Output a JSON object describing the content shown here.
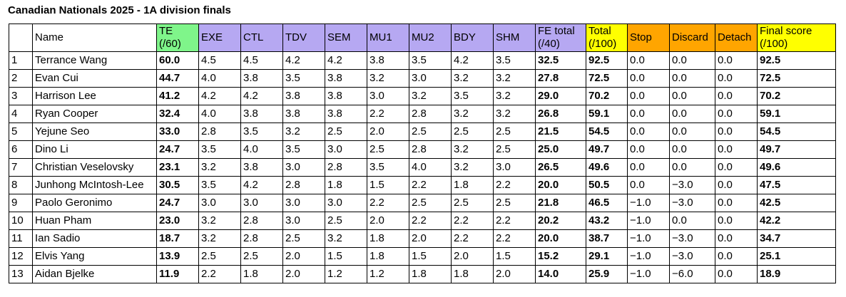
{
  "title": "Canadian Nationals 2025 - 1A division finals",
  "columns": {
    "rank": "",
    "name": "Name",
    "te": [
      "TE",
      "(/60)"
    ],
    "exe": "EXE",
    "ctl": "CTL",
    "tdv": "TDV",
    "sem": "SEM",
    "mu1": "MU1",
    "mu2": "MU2",
    "bdy": "BDY",
    "shm": "SHM",
    "fe_total": [
      "FE total",
      "(/40)"
    ],
    "total": [
      "Total",
      "(/100)"
    ],
    "stop": "Stop",
    "discard": "Discard",
    "detach": "Detach",
    "final": [
      "Final score",
      "(/100)"
    ]
  },
  "colors": {
    "te_header": "#7ff58a",
    "fe_header": "#b6a8f2",
    "total_header": "#ffff00",
    "deduction_header": "#ffa500",
    "final_header": "#ffff00"
  },
  "rows": [
    {
      "rank": "1",
      "name": "Terrance Wang",
      "te": "60.0",
      "exe": "4.5",
      "ctl": "4.5",
      "tdv": "4.2",
      "sem": "4.2",
      "mu1": "3.8",
      "mu2": "3.5",
      "bdy": "4.2",
      "shm": "3.5",
      "fe_total": "32.5",
      "total": "92.5",
      "stop": "0.0",
      "discard": "0.0",
      "detach": "0.0",
      "final": "92.5"
    },
    {
      "rank": "2",
      "name": "Evan Cui",
      "te": "44.7",
      "exe": "4.0",
      "ctl": "3.8",
      "tdv": "3.5",
      "sem": "3.8",
      "mu1": "3.2",
      "mu2": "3.0",
      "bdy": "3.2",
      "shm": "3.2",
      "fe_total": "27.8",
      "total": "72.5",
      "stop": "0.0",
      "discard": "0.0",
      "detach": "0.0",
      "final": "72.5"
    },
    {
      "rank": "3",
      "name": "Harrison Lee",
      "te": "41.2",
      "exe": "4.2",
      "ctl": "4.2",
      "tdv": "3.8",
      "sem": "3.8",
      "mu1": "3.0",
      "mu2": "3.2",
      "bdy": "3.5",
      "shm": "3.2",
      "fe_total": "29.0",
      "total": "70.2",
      "stop": "0.0",
      "discard": "0.0",
      "detach": "0.0",
      "final": "70.2"
    },
    {
      "rank": "4",
      "name": "Ryan Cooper",
      "te": "32.4",
      "exe": "4.0",
      "ctl": "3.8",
      "tdv": "3.8",
      "sem": "3.8",
      "mu1": "2.2",
      "mu2": "2.8",
      "bdy": "3.2",
      "shm": "3.2",
      "fe_total": "26.8",
      "total": "59.1",
      "stop": "0.0",
      "discard": "0.0",
      "detach": "0.0",
      "final": "59.1"
    },
    {
      "rank": "5",
      "name": "Yejune Seo",
      "te": "33.0",
      "exe": "2.8",
      "ctl": "3.5",
      "tdv": "3.2",
      "sem": "2.5",
      "mu1": "2.0",
      "mu2": "2.5",
      "bdy": "2.5",
      "shm": "2.5",
      "fe_total": "21.5",
      "total": "54.5",
      "stop": "0.0",
      "discard": "0.0",
      "detach": "0.0",
      "final": "54.5"
    },
    {
      "rank": "6",
      "name": "Dino Li",
      "te": "24.7",
      "exe": "3.5",
      "ctl": "4.0",
      "tdv": "3.5",
      "sem": "3.0",
      "mu1": "2.5",
      "mu2": "2.8",
      "bdy": "3.2",
      "shm": "2.5",
      "fe_total": "25.0",
      "total": "49.7",
      "stop": "0.0",
      "discard": "0.0",
      "detach": "0.0",
      "final": "49.7"
    },
    {
      "rank": "7",
      "name": "Christian Veselovsky",
      "te": "23.1",
      "exe": "3.2",
      "ctl": "3.8",
      "tdv": "3.0",
      "sem": "2.8",
      "mu1": "3.5",
      "mu2": "4.0",
      "bdy": "3.2",
      "shm": "3.0",
      "fe_total": "26.5",
      "total": "49.6",
      "stop": "0.0",
      "discard": "0.0",
      "detach": "0.0",
      "final": "49.6"
    },
    {
      "rank": "8",
      "name": "Junhong McIntosh-Lee",
      "te": "30.5",
      "exe": "3.5",
      "ctl": "4.2",
      "tdv": "2.8",
      "sem": "1.8",
      "mu1": "1.5",
      "mu2": "2.2",
      "bdy": "1.8",
      "shm": "2.2",
      "fe_total": "20.0",
      "total": "50.5",
      "stop": "0.0",
      "discard": "−3.0",
      "detach": "0.0",
      "final": "47.5"
    },
    {
      "rank": "9",
      "name": "Paolo Geronimo",
      "te": "24.7",
      "exe": "3.0",
      "ctl": "3.0",
      "tdv": "3.0",
      "sem": "3.0",
      "mu1": "2.2",
      "mu2": "2.5",
      "bdy": "2.5",
      "shm": "2.5",
      "fe_total": "21.8",
      "total": "46.5",
      "stop": "−1.0",
      "discard": "−3.0",
      "detach": "0.0",
      "final": "42.5"
    },
    {
      "rank": "10",
      "name": "Huan Pham",
      "te": "23.0",
      "exe": "3.2",
      "ctl": "2.8",
      "tdv": "3.0",
      "sem": "2.5",
      "mu1": "2.0",
      "mu2": "2.2",
      "bdy": "2.2",
      "shm": "2.2",
      "fe_total": "20.2",
      "total": "43.2",
      "stop": "−1.0",
      "discard": "0.0",
      "detach": "0.0",
      "final": "42.2"
    },
    {
      "rank": "11",
      "name": "Ian Sadio",
      "te": "18.7",
      "exe": "3.2",
      "ctl": "2.8",
      "tdv": "2.5",
      "sem": "3.2",
      "mu1": "1.8",
      "mu2": "2.0",
      "bdy": "2.2",
      "shm": "2.2",
      "fe_total": "20.0",
      "total": "38.7",
      "stop": "−1.0",
      "discard": "−3.0",
      "detach": "0.0",
      "final": "34.7"
    },
    {
      "rank": "12",
      "name": "Elvis Yang",
      "te": "13.9",
      "exe": "2.5",
      "ctl": "2.5",
      "tdv": "2.0",
      "sem": "1.5",
      "mu1": "1.8",
      "mu2": "1.5",
      "bdy": "2.0",
      "shm": "1.5",
      "fe_total": "15.2",
      "total": "29.1",
      "stop": "−1.0",
      "discard": "−3.0",
      "detach": "0.0",
      "final": "25.1"
    },
    {
      "rank": "13",
      "name": "Aidan Bjelke",
      "te": "11.9",
      "exe": "2.2",
      "ctl": "1.8",
      "tdv": "2.0",
      "sem": "1.2",
      "mu1": "1.2",
      "mu2": "1.8",
      "bdy": "1.8",
      "shm": "2.0",
      "fe_total": "14.0",
      "total": "25.9",
      "stop": "−1.0",
      "discard": "−6.0",
      "detach": "0.0",
      "final": "18.9"
    }
  ]
}
